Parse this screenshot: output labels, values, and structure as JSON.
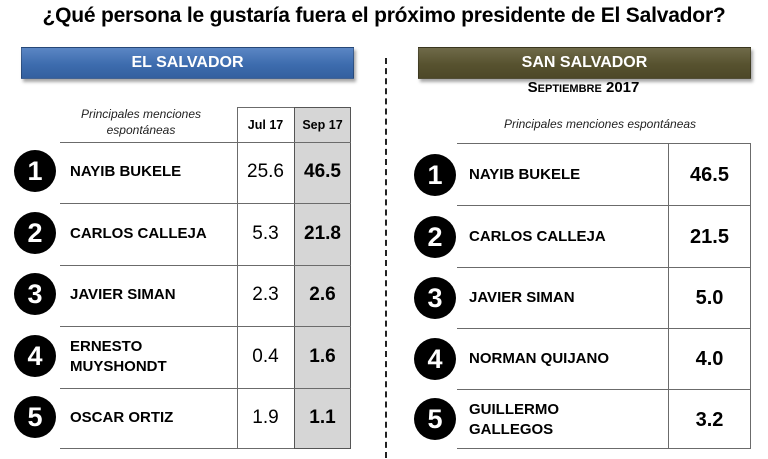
{
  "title": "¿Qué persona le gustaría fuera el próximo presidente de El Salvador?",
  "left_panel": {
    "banner": "EL SALVADOR",
    "note": "Principales menciones espontáneas",
    "columns": [
      "Jul 17",
      "Sep 17"
    ],
    "rows": [
      {
        "rank": "1",
        "name": "NAYIB BUKELE",
        "jul": "25.6",
        "sep": "46.5"
      },
      {
        "rank": "2",
        "name": "CARLOS CALLEJA",
        "jul": "5.3",
        "sep": "21.8"
      },
      {
        "rank": "3",
        "name": "JAVIER SIMAN",
        "jul": "2.3",
        "sep": "2.6"
      },
      {
        "rank": "4",
        "name": "ERNESTO MUYSHONDT",
        "jul": "0.4",
        "sep": "1.6"
      },
      {
        "rank": "5",
        "name": "OSCAR ORTIZ",
        "jul": "1.9",
        "sep": "1.1"
      }
    ]
  },
  "right_panel": {
    "banner": "SAN SALVADOR",
    "period": "Septiembre 2017",
    "note": "Principales menciones espontáneas",
    "rows": [
      {
        "rank": "1",
        "name": "NAYIB BUKELE",
        "value": "46.5"
      },
      {
        "rank": "2",
        "name": "CARLOS CALLEJA",
        "value": "21.5"
      },
      {
        "rank": "3",
        "name": "JAVIER SIMAN",
        "value": "5.0"
      },
      {
        "rank": "4",
        "name": "NORMAN QUIJANO",
        "value": "4.0"
      },
      {
        "rank": "5",
        "name": "GUILLERMO GALLEGOS",
        "value": "3.2"
      }
    ]
  },
  "colors": {
    "left_banner": "#3d6cae",
    "right_banner": "#57522f",
    "highlight_column": "#d6d6d6"
  }
}
